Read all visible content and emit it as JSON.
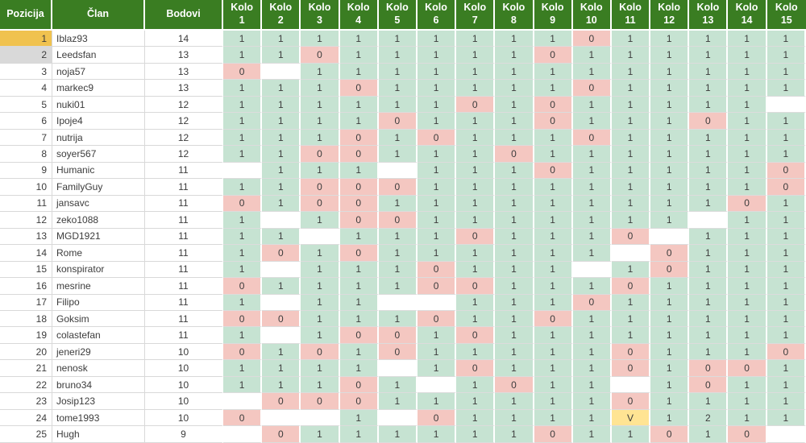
{
  "columns": {
    "position": "Pozicija",
    "member": "Član",
    "points": "Bodovi"
  },
  "round_word": "Kolo",
  "round_numbers": [
    "1",
    "2",
    "3",
    "4",
    "5",
    "6",
    "7",
    "8",
    "9",
    "10",
    "11",
    "12",
    "13",
    "14",
    "15"
  ],
  "colors": {
    "header_bg": "#3a7d22",
    "header_text": "#ffffff",
    "win_bg": "#c6e3d2",
    "lose_bg": "#f4c7c1",
    "special_bg": "#ffe493",
    "gold_bg": "#f0c24f",
    "silver_bg": "#d9d9d9",
    "text": "#3c3c3c",
    "grid_line": "#d9d9d9"
  },
  "rows": [
    {
      "position": "1",
      "member": "Iblaz93",
      "points": "14",
      "medal": "gold",
      "rounds": [
        "1",
        "1",
        "1",
        "1",
        "1",
        "1",
        "1",
        "1",
        "1",
        "0",
        "1",
        "1",
        "1",
        "1",
        "1"
      ]
    },
    {
      "position": "2",
      "member": "Leedsfan",
      "points": "13",
      "medal": "silver",
      "rounds": [
        "1",
        "1",
        "0",
        "1",
        "1",
        "1",
        "1",
        "1",
        "0",
        "1",
        "1",
        "1",
        "1",
        "1",
        "1"
      ]
    },
    {
      "position": "3",
      "member": "noja57",
      "points": "13",
      "medal": "",
      "rounds": [
        "0",
        "",
        "1",
        "1",
        "1",
        "1",
        "1",
        "1",
        "1",
        "1",
        "1",
        "1",
        "1",
        "1",
        "1"
      ]
    },
    {
      "position": "4",
      "member": "markec9",
      "points": "13",
      "medal": "",
      "rounds": [
        "1",
        "1",
        "1",
        "0",
        "1",
        "1",
        "1",
        "1",
        "1",
        "0",
        "1",
        "1",
        "1",
        "1",
        "1"
      ]
    },
    {
      "position": "5",
      "member": "nuki01",
      "points": "12",
      "medal": "",
      "rounds": [
        "1",
        "1",
        "1",
        "1",
        "1",
        "1",
        "0",
        "1",
        "0",
        "1",
        "1",
        "1",
        "1",
        "1",
        ""
      ]
    },
    {
      "position": "6",
      "member": "Ipoje4",
      "points": "12",
      "medal": "",
      "rounds": [
        "1",
        "1",
        "1",
        "1",
        "0",
        "1",
        "1",
        "1",
        "0",
        "1",
        "1",
        "1",
        "0",
        "1",
        "1"
      ]
    },
    {
      "position": "7",
      "member": "nutrija",
      "points": "12",
      "medal": "",
      "rounds": [
        "1",
        "1",
        "1",
        "0",
        "1",
        "0",
        "1",
        "1",
        "1",
        "0",
        "1",
        "1",
        "1",
        "1",
        "1"
      ]
    },
    {
      "position": "8",
      "member": "soyer567",
      "points": "12",
      "medal": "",
      "rounds": [
        "1",
        "1",
        "0",
        "0",
        "1",
        "1",
        "1",
        "0",
        "1",
        "1",
        "1",
        "1",
        "1",
        "1",
        "1"
      ]
    },
    {
      "position": "9",
      "member": "Humanic",
      "points": "11",
      "medal": "",
      "rounds": [
        "",
        "1",
        "1",
        "1",
        "",
        "1",
        "1",
        "1",
        "0",
        "1",
        "1",
        "1",
        "1",
        "1",
        "0"
      ]
    },
    {
      "position": "10",
      "member": "FamilyGuy",
      "points": "11",
      "medal": "",
      "rounds": [
        "1",
        "1",
        "0",
        "0",
        "0",
        "1",
        "1",
        "1",
        "1",
        "1",
        "1",
        "1",
        "1",
        "1",
        "0"
      ]
    },
    {
      "position": "11",
      "member": "jansavc",
      "points": "11",
      "medal": "",
      "rounds": [
        "0",
        "1",
        "0",
        "0",
        "1",
        "1",
        "1",
        "1",
        "1",
        "1",
        "1",
        "1",
        "1",
        "0",
        "1"
      ]
    },
    {
      "position": "12",
      "member": "zeko1088",
      "points": "11",
      "medal": "",
      "rounds": [
        "1",
        "",
        "1",
        "0",
        "0",
        "1",
        "1",
        "1",
        "1",
        "1",
        "1",
        "1",
        "",
        "1",
        "1"
      ]
    },
    {
      "position": "13",
      "member": "MGD1921",
      "points": "11",
      "medal": "",
      "rounds": [
        "1",
        "1",
        "",
        "1",
        "1",
        "1",
        "0",
        "1",
        "1",
        "1",
        "0",
        "",
        "1",
        "1",
        "1"
      ]
    },
    {
      "position": "14",
      "member": "Rome",
      "points": "11",
      "medal": "",
      "rounds": [
        "1",
        "0",
        "1",
        "0",
        "1",
        "1",
        "1",
        "1",
        "1",
        "1",
        "",
        "0",
        "1",
        "1",
        "1"
      ]
    },
    {
      "position": "15",
      "member": "konspirator",
      "points": "11",
      "medal": "",
      "rounds": [
        "1",
        "",
        "1",
        "1",
        "1",
        "0",
        "1",
        "1",
        "1",
        "",
        "1",
        "0",
        "1",
        "1",
        "1"
      ]
    },
    {
      "position": "16",
      "member": "mesrine",
      "points": "11",
      "medal": "",
      "rounds": [
        "0",
        "1",
        "1",
        "1",
        "1",
        "0",
        "0",
        "1",
        "1",
        "1",
        "0",
        "1",
        "1",
        "1",
        "1"
      ]
    },
    {
      "position": "17",
      "member": "Filipo",
      "points": "11",
      "medal": "",
      "rounds": [
        "1",
        "",
        "1",
        "1",
        "",
        "",
        "1",
        "1",
        "1",
        "0",
        "1",
        "1",
        "1",
        "1",
        "1"
      ]
    },
    {
      "position": "18",
      "member": "Goksim",
      "points": "11",
      "medal": "",
      "rounds": [
        "0",
        "0",
        "1",
        "1",
        "1",
        "0",
        "1",
        "1",
        "0",
        "1",
        "1",
        "1",
        "1",
        "1",
        "1"
      ]
    },
    {
      "position": "19",
      "member": "colastefan",
      "points": "11",
      "medal": "",
      "rounds": [
        "1",
        "",
        "1",
        "0",
        "0",
        "1",
        "0",
        "1",
        "1",
        "1",
        "1",
        "1",
        "1",
        "1",
        "1"
      ]
    },
    {
      "position": "20",
      "member": "jeneri29",
      "points": "10",
      "medal": "",
      "rounds": [
        "0",
        "1",
        "0",
        "1",
        "0",
        "1",
        "1",
        "1",
        "1",
        "1",
        "0",
        "1",
        "1",
        "1",
        "0"
      ]
    },
    {
      "position": "21",
      "member": "nenosk",
      "points": "10",
      "medal": "",
      "rounds": [
        "1",
        "1",
        "1",
        "1",
        "",
        "1",
        "0",
        "1",
        "1",
        "1",
        "0",
        "1",
        "0",
        "0",
        "1"
      ]
    },
    {
      "position": "22",
      "member": "bruno34",
      "points": "10",
      "medal": "",
      "rounds": [
        "1",
        "1",
        "1",
        "0",
        "1",
        "",
        "1",
        "0",
        "1",
        "1",
        "",
        "1",
        "0",
        "1",
        "1"
      ]
    },
    {
      "position": "23",
      "member": "Josip123",
      "points": "10",
      "medal": "",
      "rounds": [
        "",
        "0",
        "0",
        "0",
        "1",
        "1",
        "1",
        "1",
        "1",
        "1",
        "0",
        "1",
        "1",
        "1",
        "1"
      ]
    },
    {
      "position": "24",
      "member": "tome1993",
      "points": "10",
      "medal": "",
      "rounds": [
        "0",
        "",
        "",
        "1",
        "",
        "0",
        "1",
        "1",
        "1",
        "1",
        "V",
        "1",
        "2",
        "1",
        "1"
      ]
    },
    {
      "position": "25",
      "member": "Hugh",
      "points": "9",
      "medal": "",
      "rounds": [
        "",
        "0",
        "1",
        "1",
        "1",
        "1",
        "1",
        "1",
        "0",
        "1",
        "1",
        "0",
        "1",
        "0",
        ""
      ]
    }
  ]
}
